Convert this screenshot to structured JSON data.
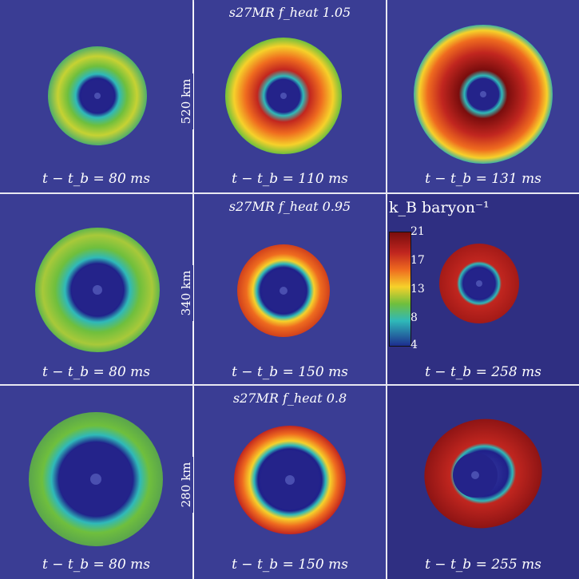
{
  "rows": [
    {
      "model": "s27MR f_heat 1.05",
      "scale": "520 km",
      "panels": [
        {
          "time": "t − t_b = 80 ms"
        },
        {
          "time": "t − t_b = 110 ms"
        },
        {
          "time": "t − t_b = 131 ms"
        }
      ]
    },
    {
      "model": "s27MR f_heat 0.95",
      "scale": "340 km",
      "panels": [
        {
          "time": "t − t_b = 80 ms"
        },
        {
          "time": "t − t_b = 150 ms"
        },
        {
          "time": "t − t_b = 258 ms"
        }
      ]
    },
    {
      "model": "s27MR f_heat 0.8",
      "scale": "280 km",
      "panels": [
        {
          "time": "t − t_b = 80 ms"
        },
        {
          "time": "t − t_b = 150 ms"
        },
        {
          "time": "t − t_b = 255 ms"
        }
      ]
    }
  ],
  "colorbar": {
    "title": "k_B baryon⁻¹",
    "ticks": [
      "21",
      "17",
      "13",
      "8",
      "4"
    ]
  },
  "colors": {
    "background": "#3b3f97",
    "divider": "#e8e8f2"
  }
}
